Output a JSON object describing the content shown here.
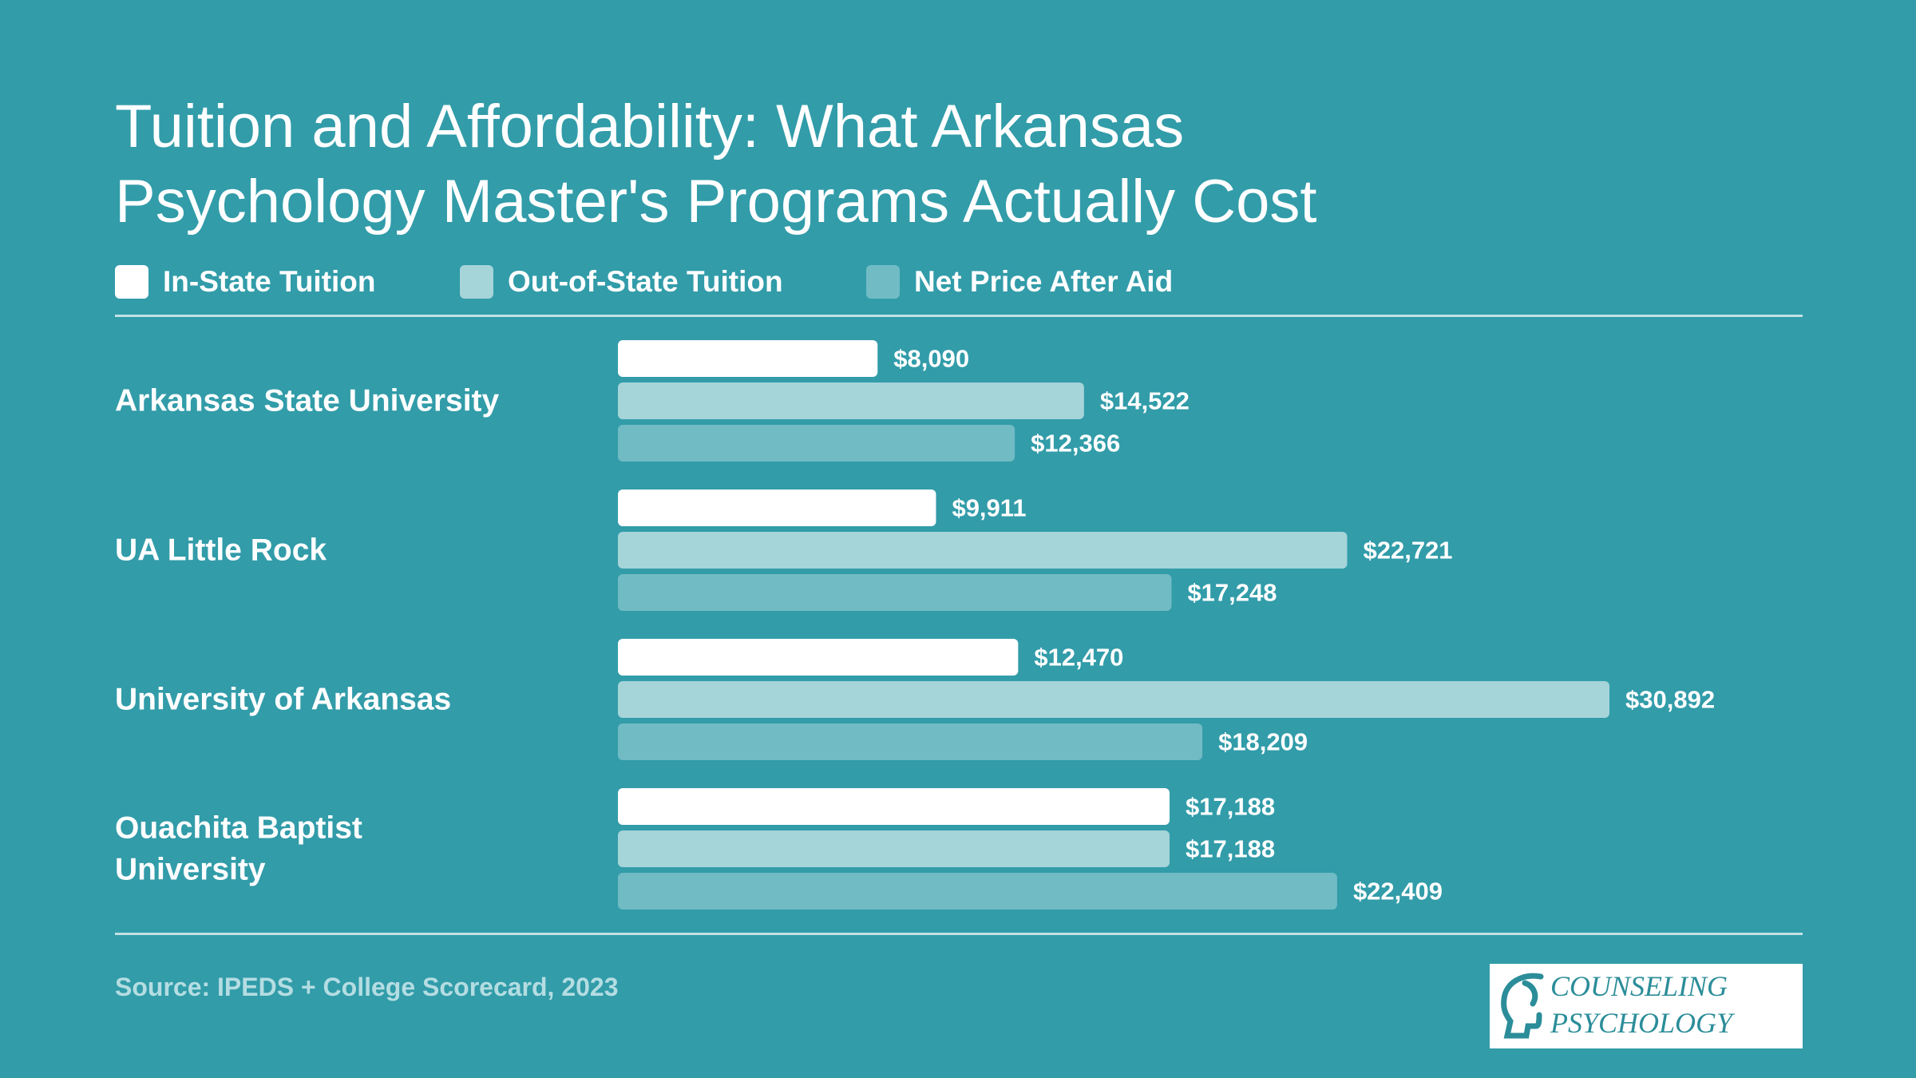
{
  "title_lines": [
    "Tuition and Affordability: What Arkansas",
    "Psychology Master's Programs Actually Cost"
  ],
  "legend": [
    {
      "label": "In-State Tuition",
      "color": "#ffffff"
    },
    {
      "label": "Out-of-State Tuition",
      "color": "#a5d4d9"
    },
    {
      "label": "Net Price After Aid",
      "color": "#71bbc4"
    }
  ],
  "source": "Source: IPEDS + College Scorecard, 2023",
  "logo": {
    "line1": "COUNSELING",
    "line2": "PSYCHOLOGY",
    "color": "#2b8d99"
  },
  "chart_data": {
    "type": "bar",
    "orientation": "horizontal",
    "grouped": true,
    "categories": [
      [
        "Arkansas State University"
      ],
      [
        "UA Little Rock"
      ],
      [
        "University of Arkansas"
      ],
      [
        "Ouachita Baptist",
        "University"
      ]
    ],
    "series": [
      {
        "name": "In-State Tuition",
        "color": "#ffffff",
        "values": [
          8090,
          9911,
          12470,
          17188
        ],
        "labels": [
          "$8,090",
          "$9,911",
          "$12,470",
          "$17,188"
        ]
      },
      {
        "name": "Out-of-State Tuition",
        "color": "#a5d4d9",
        "values": [
          14522,
          22721,
          30892,
          17188
        ],
        "labels": [
          "$14,522",
          "$22,721",
          "$30,892",
          "$17,188"
        ]
      },
      {
        "name": "Net Price After Aid",
        "color": "#71bbc4",
        "values": [
          12366,
          17248,
          18209,
          22409
        ],
        "labels": [
          "$12,366",
          "$17,248",
          "$18,209",
          "$22,409"
        ]
      }
    ],
    "xlim": [
      0,
      30892
    ],
    "value_labels": true,
    "grid": false
  }
}
